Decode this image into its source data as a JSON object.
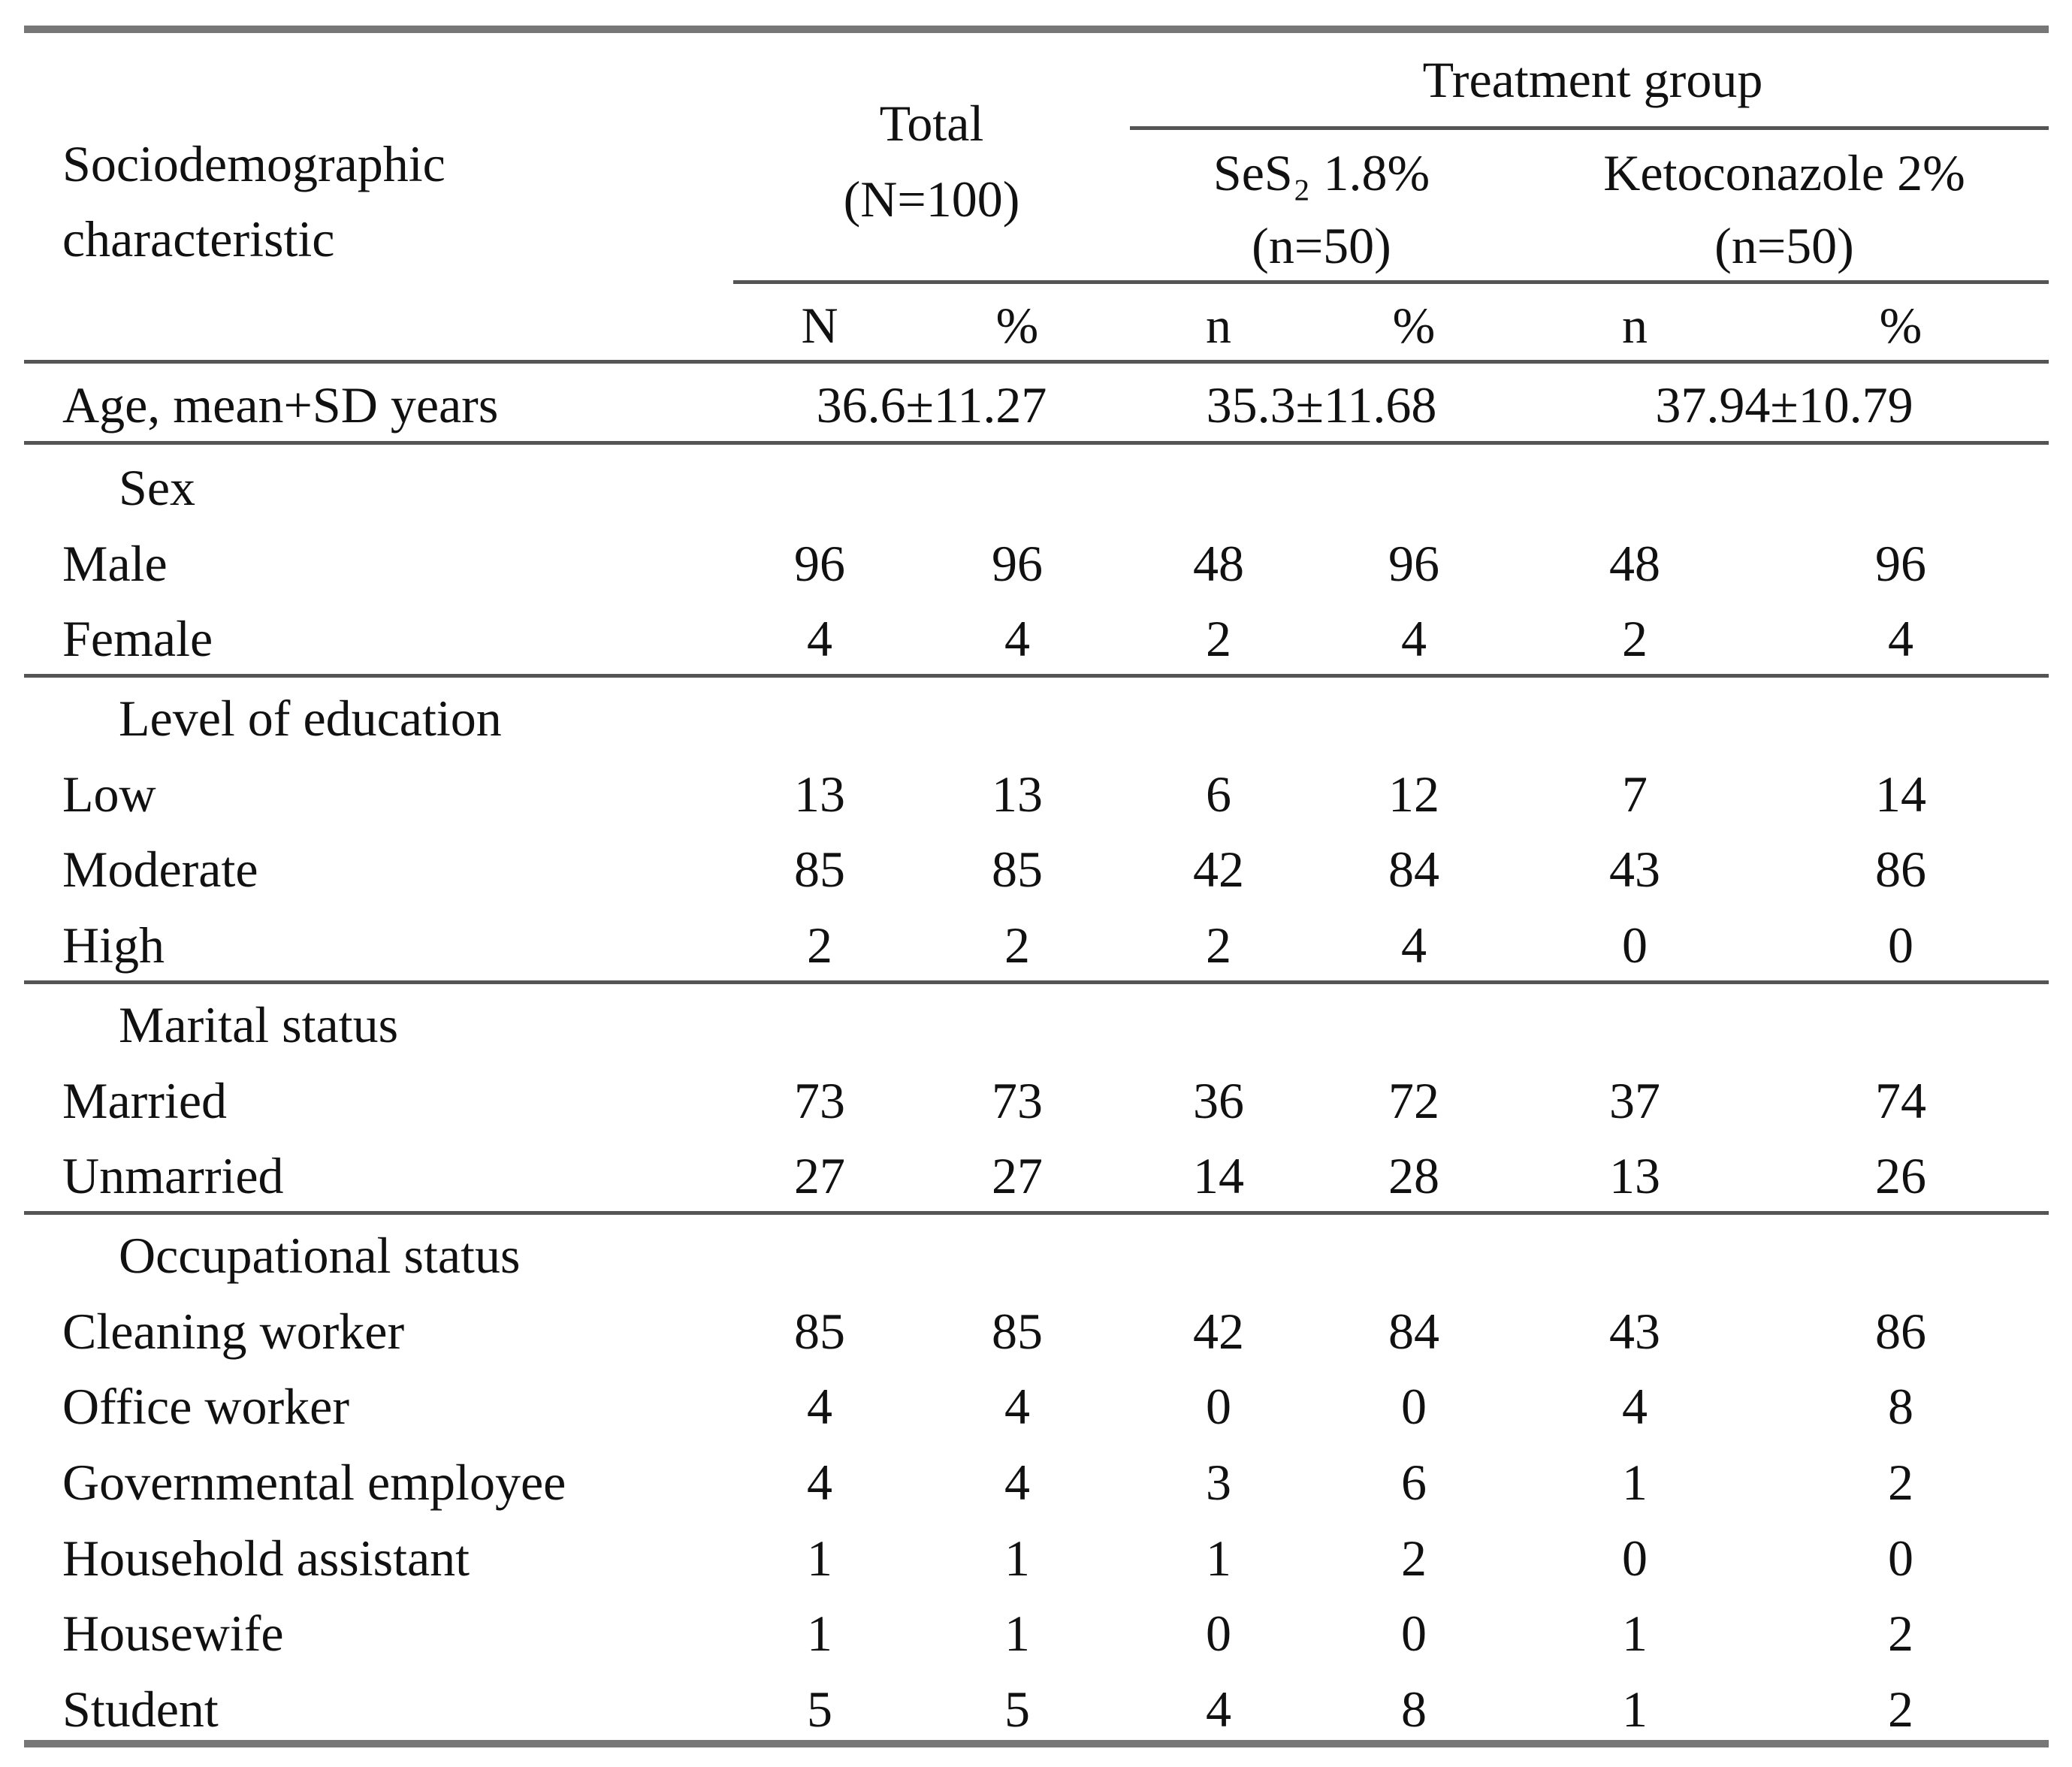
{
  "header": {
    "characteristic": "Sociodemographic characteristic",
    "total": "Total",
    "total_n": "(N=100)",
    "treatment_group": "Treatment group",
    "groups": [
      {
        "name": "SeS₂ 1.8%",
        "n": "(n=50)"
      },
      {
        "name": "Ketoconazole 2%",
        "n": "(n=50)"
      }
    ],
    "subheaders": [
      "N",
      "%",
      "n",
      "%",
      "n",
      "%"
    ]
  },
  "age_row": {
    "label": "Age, mean+SD years",
    "values": [
      "36.6±11.27",
      "35.3±11.68",
      "37.94±10.79"
    ]
  },
  "sections": [
    {
      "title": "Sex",
      "rows": [
        {
          "label": "Male",
          "values": [
            "96",
            "96",
            "48",
            "96",
            "48",
            "96"
          ]
        },
        {
          "label": "Female",
          "values": [
            "4",
            "4",
            "2",
            "4",
            "2",
            "4"
          ]
        }
      ]
    },
    {
      "title": "Level of education",
      "rows": [
        {
          "label": "Low",
          "values": [
            "13",
            "13",
            "6",
            "12",
            "7",
            "14"
          ]
        },
        {
          "label": "Moderate",
          "values": [
            "85",
            "85",
            "42",
            "84",
            "43",
            "86"
          ]
        },
        {
          "label": "High",
          "values": [
            "2",
            "2",
            "2",
            "4",
            "0",
            "0"
          ]
        }
      ]
    },
    {
      "title": "Marital status",
      "rows": [
        {
          "label": "Married",
          "values": [
            "73",
            "73",
            "36",
            "72",
            "37",
            "74"
          ]
        },
        {
          "label": "Unmarried",
          "values": [
            "27",
            "27",
            "14",
            "28",
            "13",
            "26"
          ]
        }
      ]
    },
    {
      "title": "Occupational status",
      "rows": [
        {
          "label": "Cleaning worker",
          "values": [
            "85",
            "85",
            "42",
            "84",
            "43",
            "86"
          ]
        },
        {
          "label": "Office worker",
          "values": [
            "4",
            "4",
            "0",
            "0",
            "4",
            "8"
          ]
        },
        {
          "label": "Governmental employee",
          "values": [
            "4",
            "4",
            "3",
            "6",
            "1",
            "2"
          ]
        },
        {
          "label": "Household assistant",
          "values": [
            "1",
            "1",
            "1",
            "2",
            "0",
            "0"
          ]
        },
        {
          "label": "Housewife",
          "values": [
            "1",
            "1",
            "0",
            "0",
            "1",
            "2"
          ]
        },
        {
          "label": "Student",
          "values": [
            "5",
            "5",
            "4",
            "8",
            "1",
            "2"
          ]
        }
      ]
    }
  ]
}
